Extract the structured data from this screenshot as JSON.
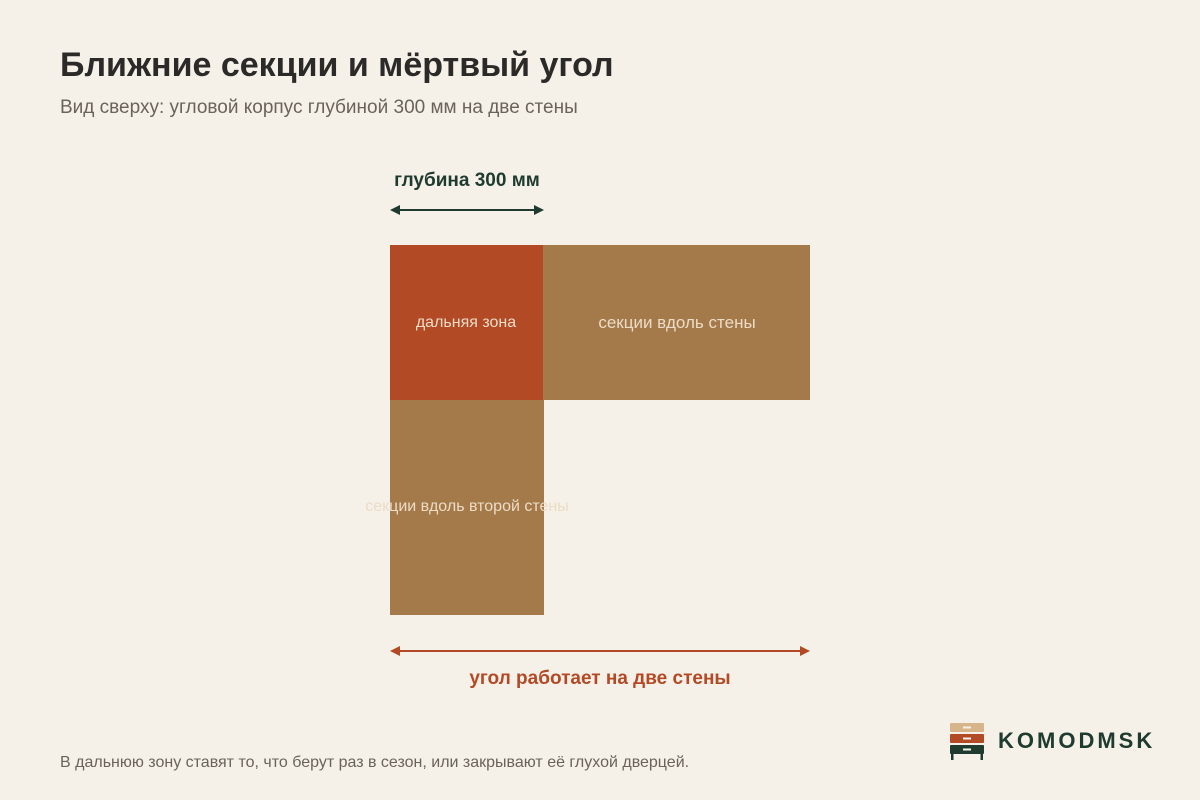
{
  "header": {
    "title": "Ближние секции и мёртвый угол",
    "subtitle": "Вид сверху: угловой корпус глубиной 300 мм на две стены"
  },
  "diagram": {
    "depth_label": "глубина 300 мм",
    "far_zone_label": "дальняя зона",
    "wall_sections_label": "секции вдоль стены",
    "second_wall_sections_label": "секции вдоль второй стены",
    "corner_label": "угол работает на две стены"
  },
  "colors": {
    "far_zone": "#b34a26",
    "sections": "#a57a4b",
    "depth_arrow": "#1f3b2f",
    "corner_arrow": "#b34a26",
    "zone_text": "#ecdcc6",
    "background": "#f5f0e8"
  },
  "footer": {
    "note": "В дальнюю зону ставят то, что берут раз в сезон, или закрывают её глухой дверцей.",
    "brand": "KOMODMSK"
  }
}
